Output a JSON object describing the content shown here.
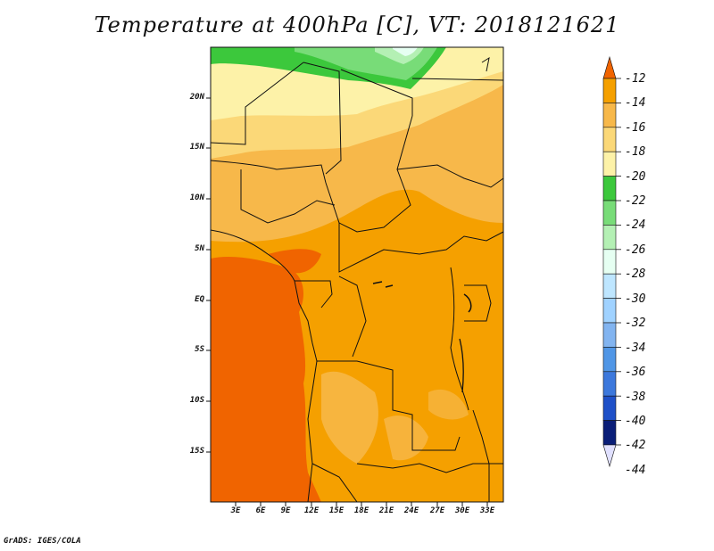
{
  "title": "Temperature at 400hPa [C], VT: 2018121621",
  "credit": "GrADS: IGES/COLA",
  "map": {
    "lat_labels": [
      "20N",
      "15N",
      "10N",
      "5N",
      "EQ",
      "5S",
      "10S",
      "15S"
    ],
    "lon_labels": [
      "3E",
      "6E",
      "9E",
      "12E",
      "15E",
      "18E",
      "21E",
      "24E",
      "27E",
      "30E",
      "33E"
    ]
  },
  "colorbar": {
    "labels": [
      "-12",
      "-14",
      "-16",
      "-18",
      "-20",
      "-22",
      "-24",
      "-26",
      "-28",
      "-30",
      "-32",
      "-34",
      "-36",
      "-38",
      "-40",
      "-42",
      "-44"
    ],
    "colors": [
      "#f06400",
      "#f5a000",
      "#f7b84a",
      "#fbd878",
      "#fdf2a8",
      "#3cc83c",
      "#78dc78",
      "#b4f0b4",
      "#e6fff2",
      "#bee6ff",
      "#a0d2ff",
      "#82b4f0",
      "#5096e6",
      "#3c78dc",
      "#1e50c8",
      "#0a1e78",
      "#e0e0ff"
    ]
  },
  "colors": {
    "deep_orange": "#f06400",
    "orange": "#f5a000",
    "light_orange": "#f7b84a",
    "yellow": "#fbd878",
    "pale_yellow": "#fdf2a8",
    "green": "#3cc83c"
  }
}
